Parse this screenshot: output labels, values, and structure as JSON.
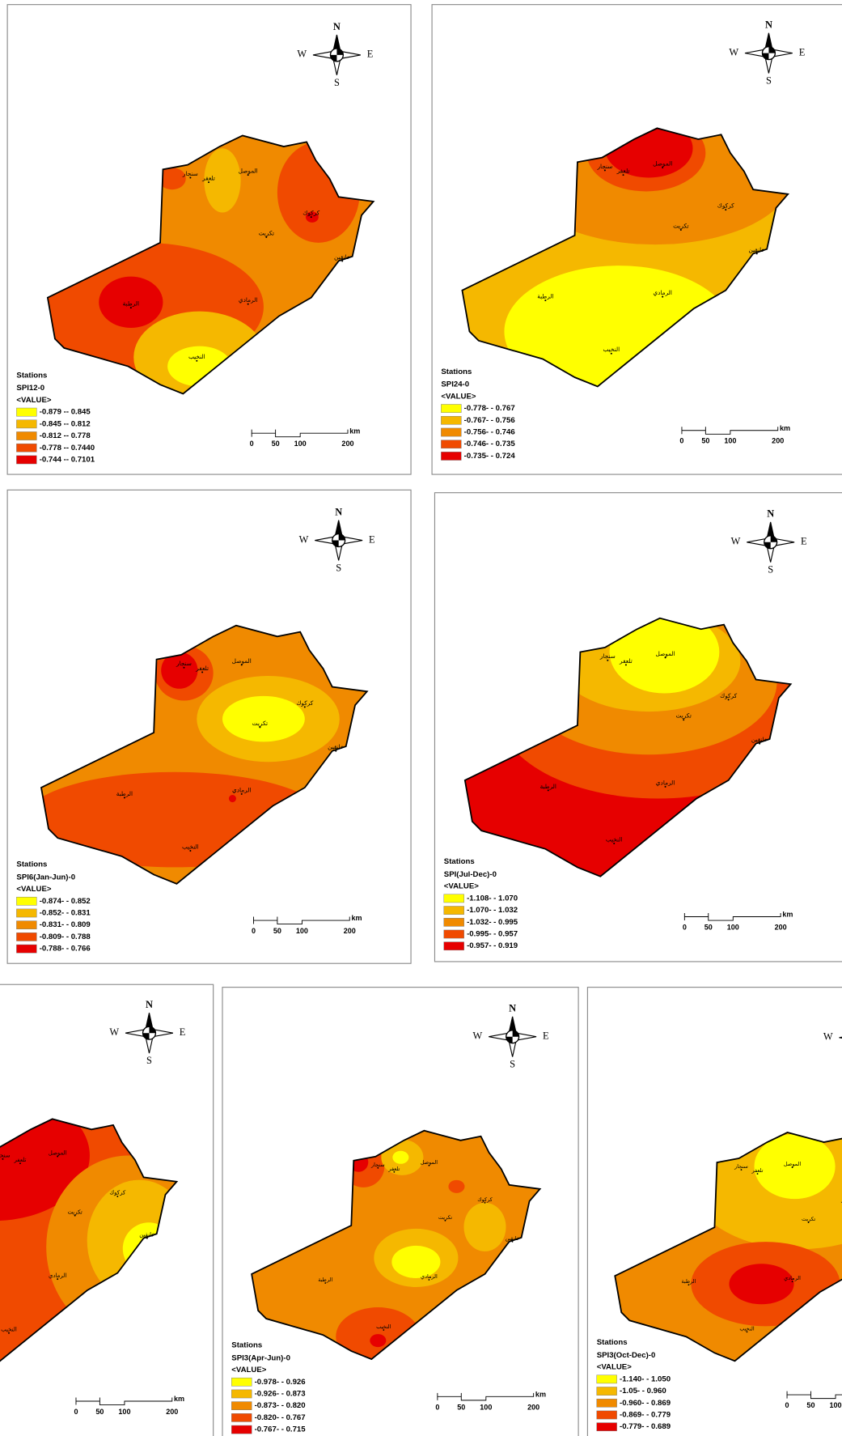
{
  "compass": {
    "north": "N",
    "east": "E",
    "south": "S",
    "west": "W"
  },
  "scale_bar": {
    "ticks": [
      "0",
      "50",
      "100",
      "200"
    ],
    "unit": "km"
  },
  "stations": [
    "سنجار",
    "تلعفر",
    "الموصل",
    "كركوك",
    "تكريت",
    "الرمادي",
    "الرطبة",
    "النخيب",
    "خانقين"
  ],
  "legend": {
    "heading": "Stations",
    "field": "<VALUE>",
    "colors": [
      "#ffff00",
      "#f5b800",
      "#f08a00",
      "#f04a00",
      "#e60000"
    ]
  },
  "legends": [
    {
      "title": "SPI12-0",
      "classes": [
        "-0.879 -- 0.845",
        "-0.845 -- 0.812",
        "-0.812 -- 0.778",
        "-0.778 -- 0.7440",
        "-0.744 -- 0.7101"
      ]
    },
    {
      "title": "SPI24-0",
      "classes": [
        "-0.778- - 0.767",
        "-0.767- - 0.756",
        "-0.756- - 0.746",
        "-0.746- - 0.735",
        "-0.735- - 0.724"
      ]
    },
    {
      "title": "SPI6(Jan-Jun)-0",
      "classes": [
        "-0.874- - 0.852",
        "-0.852- - 0.831",
        "-0.831- - 0.809",
        "-0.809- - 0.788",
        "-0.788- - 0.766"
      ]
    },
    {
      "title": "SPI(Jul-Dec)-0",
      "classes": [
        "-1.108- - 1.070",
        "-1.070- - 1.032",
        "-1.032- - 0.995",
        "-0.995- - 0.957",
        "-0.957- - 0.919"
      ]
    },
    {
      "title": "SPI3(Apr-Jun)-0",
      "classes": [
        "-0.978- - 0.926",
        "-0.926- - 0.873",
        "-0.873- - 0.820",
        "-0.820- - 0.767",
        "-0.767- - 0.715"
      ]
    },
    {
      "title": "SPI3(Oct-Dec)-0",
      "classes": [
        "-1.140- - 1.050",
        "-1.05- - 0.960",
        "-0.960- - 0.869",
        "-0.869- - 0.779",
        "-0.779- - 0.689"
      ]
    }
  ]
}
